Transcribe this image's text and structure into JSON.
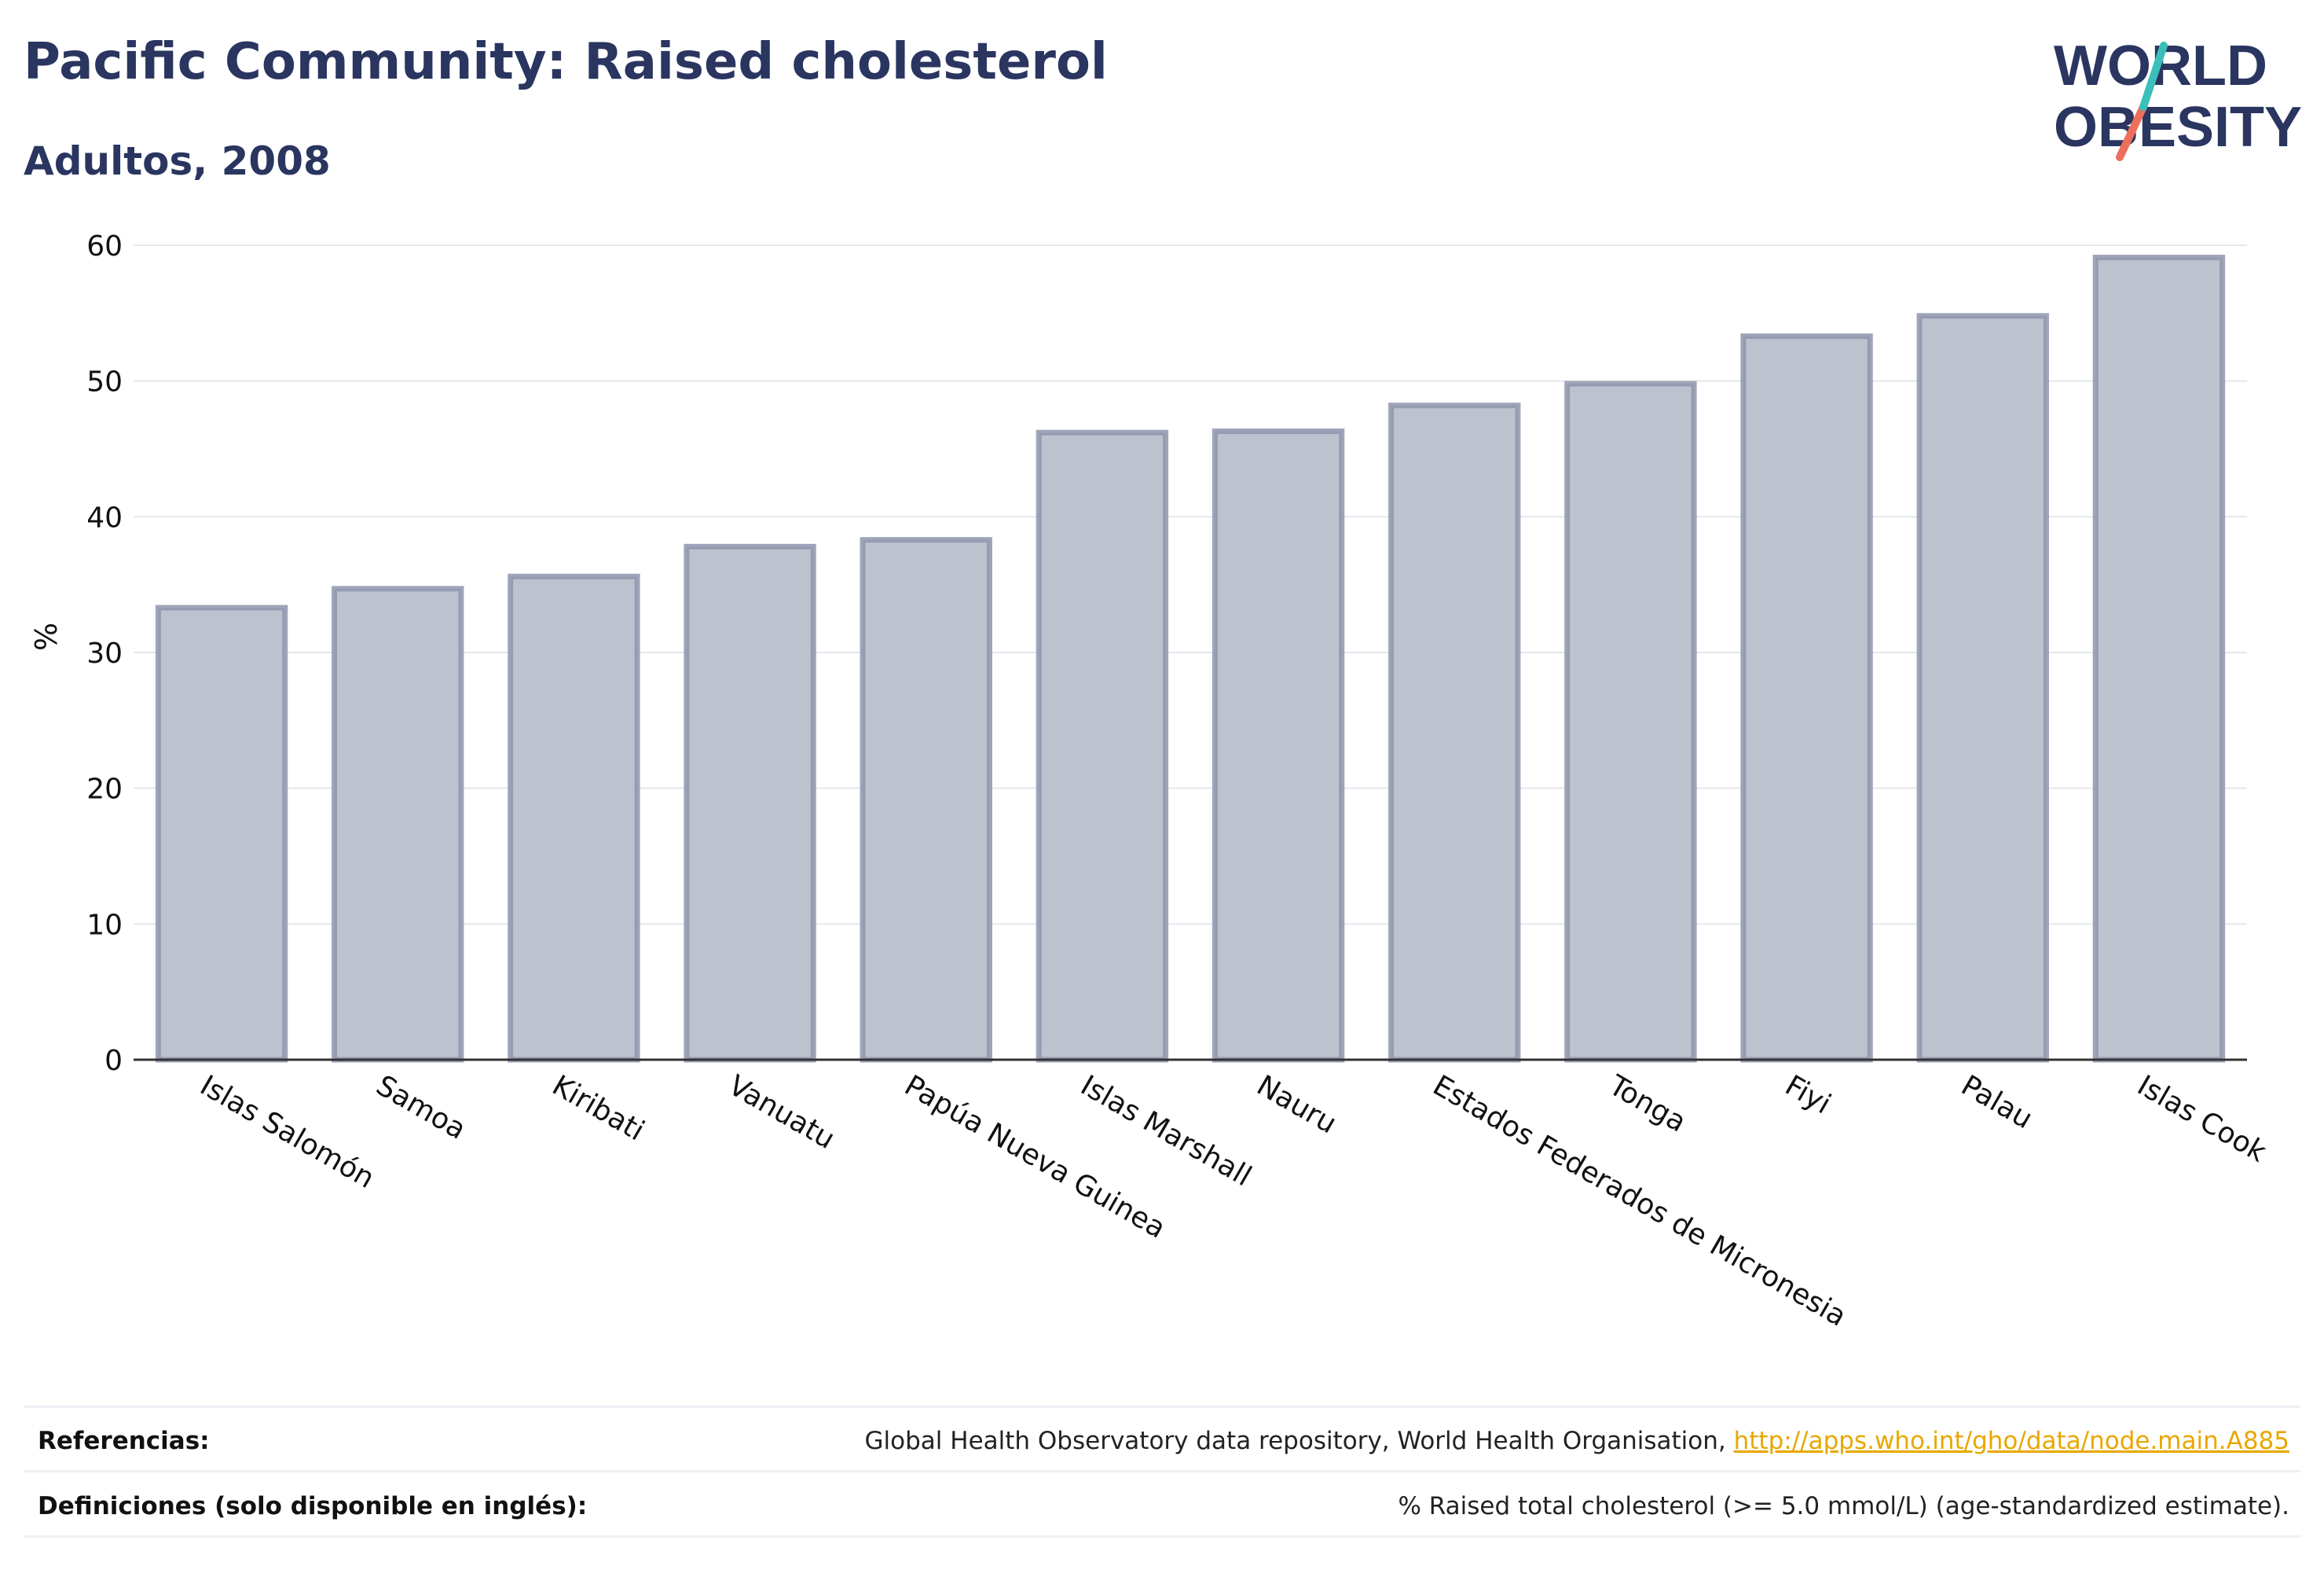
{
  "header": {
    "title": "Pacific Community: Raised cholesterol",
    "subtitle": "Adultos, 2008"
  },
  "logo": {
    "line1": "WORLD",
    "line2": "OBESITY"
  },
  "colors": {
    "text": "#2a3560",
    "bar_fill": "#bec2cf",
    "bar_stroke": "#8e95ad",
    "grid": "#e6e7ec",
    "link": "#e8a700",
    "logo_teal": "#3bbfb8",
    "logo_coral": "#ec6f5c"
  },
  "chart_data": {
    "type": "bar",
    "title": "Pacific Community: Raised cholesterol",
    "subtitle": "Adultos, 2008",
    "xlabel": "",
    "ylabel": "%",
    "ylim": [
      0,
      60
    ],
    "yticks": [
      0,
      10,
      20,
      30,
      40,
      50,
      60
    ],
    "grid": true,
    "categories": [
      "Islas Salomón",
      "Samoa",
      "Kiribati",
      "Vanuatu",
      "Papúa Nueva Guinea",
      "Islas Marshall",
      "Nauru",
      "Estados Federados de Micronesia",
      "Tonga",
      "Fiyi",
      "Palau",
      "Islas Cook"
    ],
    "values": [
      33.3,
      34.7,
      35.6,
      37.8,
      38.3,
      46.2,
      46.3,
      48.2,
      49.8,
      53.3,
      54.8,
      59.1
    ]
  },
  "footer": {
    "references_label": "Referencias:",
    "references_text": "Global Health Observatory data repository, World Health Organisation,",
    "references_link": "http://apps.who.int/gho/data/node.main.A885",
    "definitions_label": "Definiciones (solo disponible en inglés):",
    "definitions_text": "% Raised total cholesterol (>= 5.0 mmol/L) (age-standardized estimate)."
  }
}
